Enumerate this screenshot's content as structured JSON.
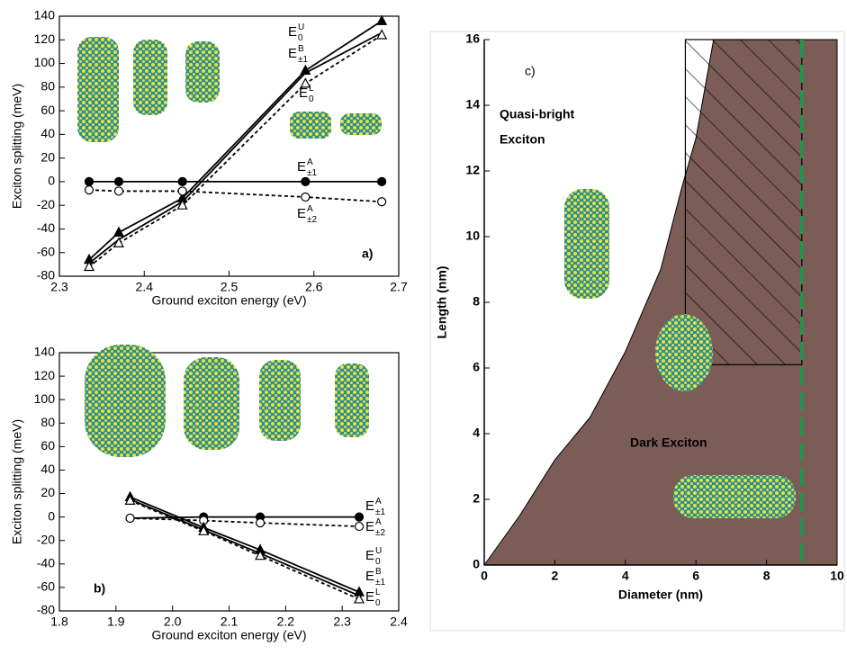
{
  "chart_data": [
    {
      "type": "line",
      "xlabel": "Ground exciton energy (eV)",
      "ylabel": "Exciton splitting (meV)",
      "panel_label": "a)",
      "x": [
        2.335,
        2.37,
        2.445,
        2.59,
        2.68
      ],
      "xlim": [
        2.3,
        2.7
      ],
      "xticks": [
        2.3,
        2.4,
        2.5,
        2.6,
        2.7
      ],
      "ylim": [
        -80,
        140
      ],
      "yticks": [
        -80,
        -60,
        -40,
        -20,
        0,
        20,
        40,
        60,
        80,
        100,
        120,
        140
      ],
      "series": [
        {
          "name": "E",
          "superscript": "U",
          "subscript": "0",
          "color": "#000000",
          "marker": "triangle",
          "filled": true,
          "dashed": false,
          "values": [
            -66,
            -43,
            -14,
            94,
            136
          ]
        },
        {
          "name": "E",
          "superscript": "B",
          "subscript": "±1",
          "color": "#000000",
          "marker": "none",
          "filled": true,
          "dashed": false,
          "values": [
            -69,
            -49,
            -17,
            92,
            126
          ]
        },
        {
          "name": "E",
          "superscript": "L",
          "subscript": "0",
          "color": "#000000",
          "marker": "triangle",
          "filled": false,
          "dashed": true,
          "values": [
            -72,
            -52,
            -20,
            83,
            124
          ]
        },
        {
          "name": "E",
          "superscript": "A",
          "subscript": "±1",
          "color": "#000000",
          "marker": "circle",
          "filled": true,
          "dashed": false,
          "values": [
            0,
            0,
            0,
            0,
            0
          ]
        },
        {
          "name": "E",
          "superscript": "A",
          "subscript": "±2",
          "color": "#000000",
          "marker": "circle",
          "filled": false,
          "dashed": true,
          "values": [
            -7,
            -8,
            -8,
            -13,
            -17
          ]
        }
      ]
    },
    {
      "type": "line",
      "xlabel": "Ground exciton energy (eV)",
      "ylabel": "Exciton splitting (meV)",
      "panel_label": "b)",
      "x": [
        1.925,
        2.055,
        2.155,
        2.33
      ],
      "xlim": [
        1.8,
        2.4
      ],
      "xticks": [
        1.8,
        1.9,
        {
          "value": 2,
          "label": "2.0"
        },
        2.1,
        2.2,
        2.3,
        2.4
      ],
      "ylim": [
        -80,
        140
      ],
      "yticks": [
        -80,
        -60,
        -40,
        -20,
        0,
        20,
        40,
        60,
        80,
        100,
        120,
        140
      ],
      "series": [
        {
          "name": "E",
          "superscript": "A",
          "subscript": "±1",
          "color": "#000000",
          "marker": "circle",
          "filled": true,
          "dashed": false,
          "values": [
            -1,
            0,
            0,
            0
          ]
        },
        {
          "name": "E",
          "superscript": "A",
          "subscript": "±2",
          "color": "#000000",
          "marker": "circle",
          "filled": false,
          "dashed": true,
          "values": [
            -1,
            -3,
            -5,
            -8
          ]
        },
        {
          "name": "E",
          "superscript": "U",
          "subscript": "0",
          "color": "#000000",
          "marker": "triangle",
          "filled": true,
          "dashed": false,
          "values": [
            17,
            -9,
            -28,
            -64
          ]
        },
        {
          "name": "E",
          "superscript": "B",
          "subscript": "±1",
          "color": "#000000",
          "marker": "none",
          "filled": true,
          "dashed": false,
          "values": [
            15,
            -11,
            -31,
            -67
          ]
        },
        {
          "name": "E",
          "superscript": "L",
          "subscript": "0",
          "color": "#000000",
          "marker": "triangle",
          "filled": false,
          "dashed": true,
          "values": [
            14,
            -12,
            -33,
            -70
          ]
        }
      ]
    },
    {
      "type": "area",
      "xlabel": "Diameter (nm)",
      "ylabel": "Length (nm)",
      "panel_label": "c)",
      "region_labels": [
        "Quasi-bright",
        "Exciton",
        "Dark Exciton"
      ],
      "xlim": [
        0,
        10
      ],
      "xticks": [
        0,
        2,
        4,
        6,
        8,
        10
      ],
      "ylim": [
        0,
        16
      ],
      "yticks": [
        0,
        2,
        4,
        6,
        8,
        10,
        12,
        14,
        16
      ],
      "color": "#7b5c57",
      "boundary": {
        "x": [
          0,
          1,
          2,
          3,
          4,
          5,
          5.6,
          6,
          6.5
        ],
        "y": [
          0,
          1.5,
          3.2,
          4.5,
          6.5,
          9,
          11.5,
          13,
          16
        ]
      },
      "hatch_region": {
        "x": [
          5.7,
          9
        ],
        "y": [
          6.1,
          16
        ]
      },
      "dashed_line_x": 9,
      "dashed_line_color": "#1a9a4a"
    }
  ]
}
